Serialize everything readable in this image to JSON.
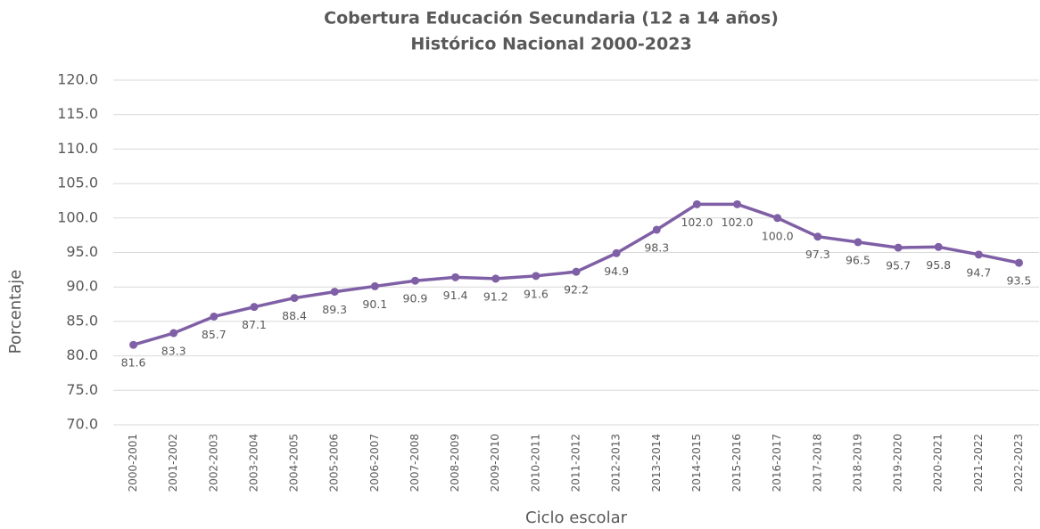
{
  "chart_data": {
    "type": "line",
    "title": "Cobertura Educación Secundaria (12 a 14 años)",
    "subtitle": "Histórico Nacional 2000-2023",
    "x_label": "Ciclo escolar",
    "y_label": "Porcentaje",
    "categories": [
      "2000-2001",
      "2001-2002",
      "2002-2003",
      "2003-2004",
      "2004-2005",
      "2005-2006",
      "2006-2007",
      "2007-2008",
      "2008-2009",
      "2009-2010",
      "2010-2011",
      "2011-2012",
      "2012-2013",
      "2013-2014",
      "2014-2015",
      "2015-2016",
      "2016-2017",
      "2017-2018",
      "2018-2019",
      "2019-2020",
      "2020-2021",
      "2021-2022",
      "2022-2023"
    ],
    "series": [
      {
        "name": "Cobertura",
        "color": "#7f5fa5",
        "values": [
          81.6,
          83.3,
          85.7,
          87.1,
          88.4,
          89.3,
          90.1,
          90.9,
          91.4,
          91.2,
          91.6,
          92.2,
          94.9,
          98.3,
          102,
          102,
          100,
          97.3,
          96.5,
          95.7,
          95.8,
          94.7,
          93.5
        ],
        "value_labels": [
          "81.6",
          "83.3",
          "85.7",
          "87.1",
          "88.4",
          "89.3",
          "90.1",
          "90.9",
          "91.4",
          "91.2",
          "91.6",
          "92.2",
          "94.9",
          "98.3",
          "102.0",
          "102.0",
          "100.0",
          "97.3",
          "96.5",
          "95.7",
          "95.8",
          "94.7",
          "93.5"
        ]
      }
    ],
    "ylim": [
      70,
      120
    ],
    "yticks": [
      {
        "value": 70,
        "label": "70.0"
      },
      {
        "value": 75,
        "label": "75.0"
      },
      {
        "value": 80,
        "label": "80.0"
      },
      {
        "value": 85,
        "label": "85.0"
      },
      {
        "value": 90,
        "label": "90.0"
      },
      {
        "value": 95,
        "label": "95.0"
      },
      {
        "value": 100,
        "label": "100.0"
      },
      {
        "value": 105,
        "label": "105.0"
      },
      {
        "value": 110,
        "label": "110.0"
      },
      {
        "value": 115,
        "label": "115.0"
      },
      {
        "value": 120,
        "label": "120.0"
      }
    ],
    "grid": true
  }
}
